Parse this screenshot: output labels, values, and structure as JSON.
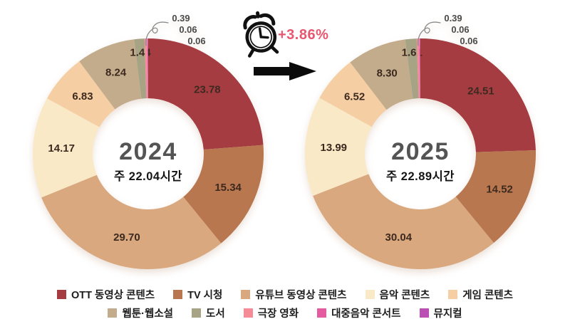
{
  "background_color": "#ffffff",
  "transition": {
    "clock_icon": "alarm-clock-icon",
    "arrow_icon": "arrow-right-icon",
    "change_label": "+3.86%",
    "change_color": "#e8566f",
    "arrow_color": "#0b0b0b"
  },
  "chart_data": {
    "type": "pie",
    "subtype": "donut",
    "legend_position": "bottom",
    "categories": [
      "OTT 동영상 콘텐츠",
      "TV 시청",
      "유튜브 동영상 콘텐츠",
      "음악 콘텐츠",
      "게임 콘텐츠",
      "웹툰·웹소설",
      "도서",
      "극장 영화",
      "대중음악 콘서트",
      "뮤지컬"
    ],
    "category_keys": [
      "ott-video",
      "tv-viewing",
      "youtube-video",
      "music",
      "game",
      "webtoon-webnovel",
      "book",
      "theater-movie",
      "pop-concert",
      "musical"
    ],
    "colors": [
      "#a53c42",
      "#b8774f",
      "#d9a87f",
      "#f9e9c7",
      "#f5cfa3",
      "#c3ac8c",
      "#a7a486",
      "#f48b97",
      "#e55ba0",
      "#bb4fb3"
    ],
    "series": [
      {
        "name": "2024",
        "center_sublabel": "주 22.04시간",
        "values": [
          23.78,
          15.34,
          29.7,
          14.17,
          6.83,
          8.24,
          1.44,
          0.39,
          0.06,
          0.06
        ]
      },
      {
        "name": "2025",
        "center_sublabel": "주 22.89시간",
        "values": [
          24.51,
          14.52,
          30.04,
          13.99,
          6.52,
          8.3,
          1.61,
          0.39,
          0.06,
          0.06
        ]
      }
    ],
    "annotation": "+3.86%"
  }
}
